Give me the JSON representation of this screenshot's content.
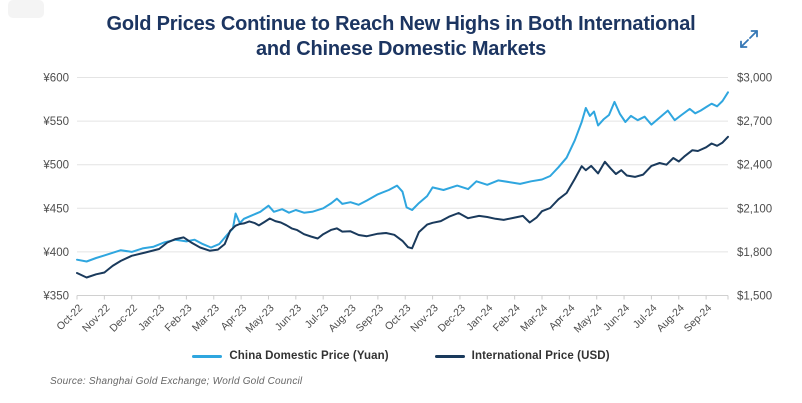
{
  "title": {
    "lines": [
      "Gold Prices Continue to Reach New Highs in Both International",
      "and Chinese Domestic Markets"
    ]
  },
  "source": "Source: Shanghai Gold Exchange; World Gold Council",
  "icons": {
    "expand": "diagonal-expand-arrows"
  },
  "colors": {
    "background": "#ffffff",
    "title_text": "#1c3561",
    "china_line": "#2fa6df",
    "international_line": "#1a3a5c",
    "gridline": "#e4e4e4",
    "axis_line": "#d0d0d0",
    "tick_mark": "#cccccc",
    "axis_text": "#4d4d4d",
    "legend_text": "#333333",
    "source_text": "#666666",
    "expand_icon": "#3577b5"
  },
  "chart_data": {
    "type": "line",
    "title": "Gold Prices Continue to Reach New Highs in Both International and Chinese Domestic Markets",
    "grid": "horizontal",
    "legend_position": "bottom",
    "x_domain": [
      0,
      23.8
    ],
    "x_tick_labels": [
      "Oct-22",
      "Nov-22",
      "Dec-22",
      "Jan-23",
      "Feb-23",
      "Mar-23",
      "Apr-23",
      "May-23",
      "Jun-23",
      "Jul-23",
      "Aug-23",
      "Sep-23",
      "Oct-23",
      "Nov-23",
      "Dec-23",
      "Jan-24",
      "Feb-24",
      "Mar-24",
      "Apr-24",
      "May-24",
      "Jun-24",
      "Jul-24",
      "Aug-24",
      "Sep-24"
    ],
    "left_axis": {
      "currency": "CNY",
      "min": 350,
      "max": 600,
      "ticks": [
        600,
        550,
        500,
        450,
        400,
        350
      ],
      "tick_labels": [
        "¥600",
        "¥550",
        "¥500",
        "¥450",
        "¥400",
        "¥350"
      ]
    },
    "right_axis": {
      "currency": "USD",
      "min": 1500,
      "max": 3000,
      "ticks": [
        3000,
        2700,
        2400,
        2100,
        1800,
        1500
      ],
      "tick_labels": [
        "$3,000",
        "$2,700",
        "$2,400",
        "$2,100",
        "$1,800",
        "$1,500"
      ]
    },
    "series": [
      {
        "name": "China Domestic Price (Yuan)",
        "axis": "left",
        "color": "#2fa6df",
        "points": [
          [
            0,
            391
          ],
          [
            0.35,
            389
          ],
          [
            0.7,
            393
          ],
          [
            1,
            396
          ],
          [
            1.3,
            399
          ],
          [
            1.6,
            402
          ],
          [
            2,
            400
          ],
          [
            2.4,
            404
          ],
          [
            2.8,
            406
          ],
          [
            3.2,
            411
          ],
          [
            3.6,
            414
          ],
          [
            4,
            412
          ],
          [
            4.3,
            414
          ],
          [
            4.6,
            409
          ],
          [
            4.9,
            405
          ],
          [
            5.2,
            409
          ],
          [
            5.5,
            420
          ],
          [
            5.7,
            427
          ],
          [
            5.8,
            444
          ],
          [
            5.95,
            433
          ],
          [
            6.1,
            438
          ],
          [
            6.4,
            442
          ],
          [
            6.7,
            446
          ],
          [
            7,
            453
          ],
          [
            7.2,
            446
          ],
          [
            7.5,
            449
          ],
          [
            7.75,
            445
          ],
          [
            8,
            448
          ],
          [
            8.3,
            445
          ],
          [
            8.6,
            446
          ],
          [
            9,
            450
          ],
          [
            9.3,
            456
          ],
          [
            9.5,
            461
          ],
          [
            9.7,
            455
          ],
          [
            10,
            457
          ],
          [
            10.3,
            454
          ],
          [
            10.6,
            459
          ],
          [
            11,
            466
          ],
          [
            11.4,
            471
          ],
          [
            11.7,
            476
          ],
          [
            11.9,
            469
          ],
          [
            12.05,
            451
          ],
          [
            12.25,
            448
          ],
          [
            12.5,
            456
          ],
          [
            12.8,
            464
          ],
          [
            13,
            474
          ],
          [
            13.4,
            471
          ],
          [
            13.9,
            476
          ],
          [
            14.3,
            472
          ],
          [
            14.6,
            481
          ],
          [
            15,
            477
          ],
          [
            15.4,
            482
          ],
          [
            15.8,
            480
          ],
          [
            16.2,
            478
          ],
          [
            16.6,
            481
          ],
          [
            17,
            483
          ],
          [
            17.3,
            487
          ],
          [
            17.6,
            497
          ],
          [
            17.9,
            508
          ],
          [
            18.2,
            528
          ],
          [
            18.45,
            549
          ],
          [
            18.6,
            565
          ],
          [
            18.75,
            556
          ],
          [
            18.9,
            561
          ],
          [
            19.05,
            545
          ],
          [
            19.25,
            552
          ],
          [
            19.45,
            557
          ],
          [
            19.65,
            572
          ],
          [
            19.85,
            558
          ],
          [
            20.05,
            549
          ],
          [
            20.25,
            556
          ],
          [
            20.5,
            551
          ],
          [
            20.75,
            555
          ],
          [
            21,
            546
          ],
          [
            21.3,
            554
          ],
          [
            21.6,
            562
          ],
          [
            21.85,
            551
          ],
          [
            22.1,
            557
          ],
          [
            22.4,
            564
          ],
          [
            22.6,
            559
          ],
          [
            22.8,
            562
          ],
          [
            23,
            566
          ],
          [
            23.2,
            570
          ],
          [
            23.4,
            567
          ],
          [
            23.6,
            573
          ],
          [
            23.8,
            583
          ]
        ]
      },
      {
        "name": "International Price (USD)",
        "axis": "right",
        "color": "#1a3a5c",
        "points": [
          [
            0,
            1655
          ],
          [
            0.35,
            1624
          ],
          [
            0.7,
            1646
          ],
          [
            1,
            1658
          ],
          [
            1.3,
            1704
          ],
          [
            1.6,
            1738
          ],
          [
            2,
            1773
          ],
          [
            2.5,
            1796
          ],
          [
            3,
            1820
          ],
          [
            3.3,
            1865
          ],
          [
            3.6,
            1888
          ],
          [
            3.9,
            1900
          ],
          [
            4.2,
            1862
          ],
          [
            4.5,
            1830
          ],
          [
            4.85,
            1808
          ],
          [
            5.15,
            1816
          ],
          [
            5.4,
            1854
          ],
          [
            5.6,
            1946
          ],
          [
            5.8,
            1980
          ],
          [
            5.95,
            1992
          ],
          [
            6.1,
            1996
          ],
          [
            6.3,
            2010
          ],
          [
            6.5,
            1998
          ],
          [
            6.65,
            1982
          ],
          [
            6.85,
            2006
          ],
          [
            7.05,
            2030
          ],
          [
            7.25,
            2012
          ],
          [
            7.45,
            2002
          ],
          [
            7.65,
            1984
          ],
          [
            7.85,
            1962
          ],
          [
            8.05,
            1950
          ],
          [
            8.3,
            1922
          ],
          [
            8.55,
            1906
          ],
          [
            8.8,
            1892
          ],
          [
            9,
            1922
          ],
          [
            9.3,
            1952
          ],
          [
            9.5,
            1962
          ],
          [
            9.7,
            1940
          ],
          [
            10,
            1942
          ],
          [
            10.3,
            1916
          ],
          [
            10.6,
            1908
          ],
          [
            11,
            1925
          ],
          [
            11.3,
            1930
          ],
          [
            11.6,
            1918
          ],
          [
            11.9,
            1876
          ],
          [
            12.1,
            1832
          ],
          [
            12.25,
            1825
          ],
          [
            12.5,
            1936
          ],
          [
            12.8,
            1988
          ],
          [
            13,
            2000
          ],
          [
            13.3,
            2012
          ],
          [
            13.6,
            2042
          ],
          [
            13.95,
            2068
          ],
          [
            14.3,
            2032
          ],
          [
            14.7,
            2048
          ],
          [
            15,
            2040
          ],
          [
            15.3,
            2028
          ],
          [
            15.6,
            2020
          ],
          [
            16,
            2036
          ],
          [
            16.3,
            2048
          ],
          [
            16.55,
            2002
          ],
          [
            16.8,
            2036
          ],
          [
            17,
            2080
          ],
          [
            17.3,
            2102
          ],
          [
            17.6,
            2162
          ],
          [
            17.9,
            2205
          ],
          [
            18.2,
            2302
          ],
          [
            18.45,
            2390
          ],
          [
            18.6,
            2362
          ],
          [
            18.8,
            2392
          ],
          [
            19.05,
            2340
          ],
          [
            19.3,
            2420
          ],
          [
            19.5,
            2376
          ],
          [
            19.7,
            2336
          ],
          [
            19.9,
            2362
          ],
          [
            20.1,
            2326
          ],
          [
            20.4,
            2316
          ],
          [
            20.7,
            2332
          ],
          [
            21,
            2392
          ],
          [
            21.3,
            2412
          ],
          [
            21.55,
            2400
          ],
          [
            21.8,
            2446
          ],
          [
            22,
            2422
          ],
          [
            22.2,
            2456
          ],
          [
            22.5,
            2500
          ],
          [
            22.7,
            2494
          ],
          [
            23,
            2520
          ],
          [
            23.2,
            2546
          ],
          [
            23.4,
            2530
          ],
          [
            23.6,
            2552
          ],
          [
            23.8,
            2592
          ]
        ]
      }
    ]
  }
}
